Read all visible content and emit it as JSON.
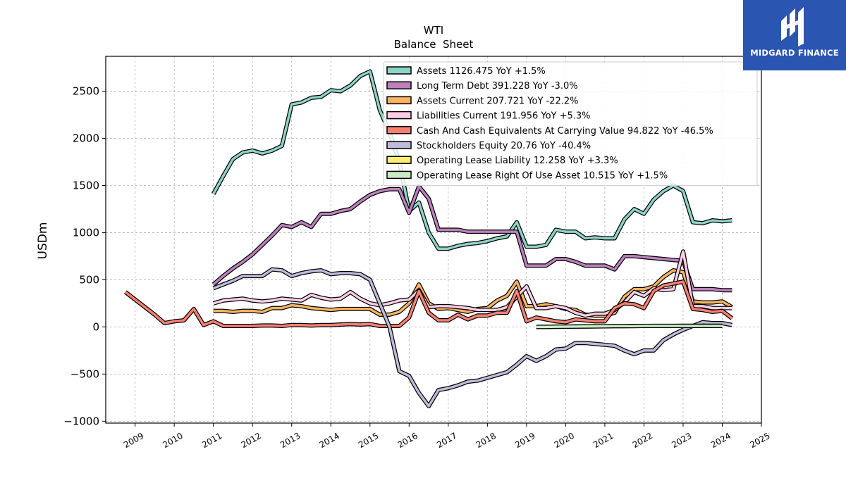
{
  "chart_data": {
    "type": "line",
    "title": "WTI",
    "subtitle": "Balance  Sheet",
    "ylabel": "USDm",
    "xlabel": "",
    "xlim": [
      2008.25,
      2025.0
    ],
    "ylim": [
      -1020,
      2870
    ],
    "grid": true,
    "legend_position": "top-right",
    "x_ticks": [
      2009,
      2010,
      2011,
      2012,
      2013,
      2014,
      2015,
      2016,
      2017,
      2018,
      2019,
      2020,
      2021,
      2022,
      2023,
      2024,
      2025
    ],
    "x_tick_labels": [
      "2009",
      "2010",
      "2011",
      "2012",
      "2013",
      "2014",
      "2015",
      "2016",
      "2017",
      "2018",
      "2019",
      "2020",
      "2021",
      "2022",
      "2023",
      "2024",
      "2025"
    ],
    "y_ticks": [
      -1000,
      -500,
      0,
      500,
      1000,
      1500,
      2000,
      2500
    ],
    "y_tick_labels": [
      "−1000",
      "−500",
      "0",
      "500",
      "1000",
      "1500",
      "2000",
      "2500"
    ],
    "series": [
      {
        "name": "Assets  1126.475 YoY +1.5%",
        "color": "#8dd3c7",
        "x": [
          2011.0,
          2011.25,
          2011.5,
          2011.75,
          2012.0,
          2012.25,
          2012.5,
          2012.75,
          2013.0,
          2013.25,
          2013.5,
          2013.75,
          2014.0,
          2014.25,
          2014.5,
          2014.75,
          2015.0,
          2015.25,
          2015.5,
          2015.75,
          2016.0,
          2016.25,
          2016.5,
          2016.75,
          2017.0,
          2017.25,
          2017.5,
          2017.75,
          2018.0,
          2018.25,
          2018.5,
          2018.75,
          2019.0,
          2019.25,
          2019.5,
          2019.75,
          2020.0,
          2020.25,
          2020.5,
          2020.75,
          2021.0,
          2021.25,
          2021.5,
          2021.75,
          2022.0,
          2022.25,
          2022.5,
          2022.75,
          2023.0,
          2023.25,
          2023.5,
          2023.75,
          2024.0,
          2024.25
        ],
        "values": [
          1410,
          1600,
          1780,
          1850,
          1870,
          1840,
          1870,
          1920,
          2360,
          2380,
          2430,
          2440,
          2510,
          2500,
          2560,
          2660,
          2710,
          2300,
          2060,
          1750,
          1230,
          1320,
          1000,
          830,
          830,
          860,
          880,
          890,
          910,
          940,
          960,
          1110,
          850,
          850,
          870,
          1030,
          1010,
          1010,
          940,
          950,
          940,
          940,
          1140,
          1250,
          1200,
          1350,
          1440,
          1500,
          1440,
          1110,
          1100,
          1130,
          1120,
          1130
        ]
      },
      {
        "name": "Long Term Debt  391.228 YoY -3.0%",
        "color": "#bc80bd",
        "x": [
          2011.0,
          2011.25,
          2011.5,
          2011.75,
          2012.0,
          2012.25,
          2012.5,
          2012.75,
          2013.0,
          2013.25,
          2013.5,
          2013.75,
          2014.0,
          2014.25,
          2014.5,
          2014.75,
          2015.0,
          2015.25,
          2015.5,
          2015.75,
          2016.0,
          2016.25,
          2016.5,
          2016.75,
          2017.0,
          2017.25,
          2017.5,
          2017.75,
          2018.0,
          2018.25,
          2018.5,
          2018.75,
          2019.0,
          2019.25,
          2019.5,
          2019.75,
          2020.0,
          2020.25,
          2020.5,
          2020.75,
          2021.0,
          2021.25,
          2021.5,
          2021.75,
          2022.0,
          2022.25,
          2022.5,
          2022.75,
          2023.0,
          2023.25,
          2023.5,
          2023.75,
          2024.0,
          2024.25
        ],
        "values": [
          450,
          540,
          620,
          690,
          770,
          870,
          970,
          1080,
          1060,
          1110,
          1060,
          1200,
          1200,
          1230,
          1250,
          1330,
          1400,
          1440,
          1460,
          1460,
          1210,
          1490,
          1360,
          1030,
          1030,
          1030,
          1010,
          1010,
          1010,
          1010,
          1010,
          1010,
          650,
          650,
          650,
          720,
          720,
          690,
          650,
          650,
          650,
          610,
          750,
          750,
          740,
          730,
          720,
          710,
          700,
          400,
          400,
          400,
          390,
          390
        ]
      },
      {
        "name": "Assets Current  207.721 YoY -22.2%",
        "color": "#fdb462",
        "x": [
          2011.0,
          2011.25,
          2011.5,
          2011.75,
          2012.0,
          2012.25,
          2012.5,
          2012.75,
          2013.0,
          2013.25,
          2013.5,
          2013.75,
          2014.0,
          2014.25,
          2014.5,
          2014.75,
          2015.0,
          2015.25,
          2015.5,
          2015.75,
          2016.0,
          2016.25,
          2016.5,
          2016.75,
          2017.0,
          2017.25,
          2017.5,
          2017.75,
          2018.0,
          2018.25,
          2018.5,
          2018.75,
          2019.0,
          2019.25,
          2019.5,
          2019.75,
          2020.0,
          2020.25,
          2020.5,
          2020.75,
          2021.0,
          2021.25,
          2021.5,
          2021.75,
          2022.0,
          2022.25,
          2022.5,
          2022.75,
          2023.0,
          2023.25,
          2023.5,
          2023.75,
          2024.0,
          2024.25
        ],
        "values": [
          170,
          170,
          160,
          170,
          170,
          160,
          200,
          200,
          230,
          220,
          200,
          190,
          180,
          190,
          190,
          190,
          190,
          130,
          130,
          160,
          250,
          450,
          250,
          190,
          200,
          180,
          160,
          190,
          200,
          280,
          330,
          480,
          220,
          220,
          240,
          220,
          190,
          180,
          130,
          120,
          120,
          150,
          320,
          400,
          400,
          430,
          530,
          600,
          580,
          270,
          260,
          260,
          270,
          210
        ]
      },
      {
        "name": "Liabilities Current  191.956 YoY +5.3%",
        "color": "#fccde5",
        "x": [
          2011.0,
          2011.25,
          2011.5,
          2011.75,
          2012.0,
          2012.25,
          2012.5,
          2012.75,
          2013.0,
          2013.25,
          2013.5,
          2013.75,
          2014.0,
          2014.25,
          2014.5,
          2014.75,
          2015.0,
          2015.25,
          2015.5,
          2015.75,
          2016.0,
          2016.25,
          2016.5,
          2016.75,
          2017.0,
          2017.25,
          2017.5,
          2017.75,
          2018.0,
          2018.25,
          2018.5,
          2018.75,
          2019.0,
          2019.25,
          2019.5,
          2019.75,
          2020.0,
          2020.25,
          2020.5,
          2020.75,
          2021.0,
          2021.25,
          2021.5,
          2021.75,
          2022.0,
          2022.25,
          2022.5,
          2022.75,
          2023.0,
          2023.25,
          2023.5,
          2023.75,
          2024.0,
          2024.25
        ],
        "values": [
          250,
          280,
          290,
          300,
          280,
          270,
          280,
          300,
          290,
          280,
          340,
          310,
          290,
          300,
          370,
          300,
          250,
          230,
          250,
          280,
          290,
          390,
          210,
          220,
          220,
          210,
          200,
          180,
          180,
          180,
          210,
          320,
          430,
          200,
          200,
          220,
          200,
          150,
          120,
          140,
          140,
          180,
          260,
          370,
          330,
          410,
          390,
          400,
          800,
          220,
          220,
          200,
          200,
          200
        ]
      },
      {
        "name": "Cash And Cash Equivalents At Carrying Value  94.822 YoY -46.5%",
        "color": "#fb8072",
        "x": [
          2008.75,
          2009.0,
          2009.25,
          2009.5,
          2009.75,
          2010.0,
          2010.25,
          2010.5,
          2010.75,
          2011.0,
          2011.25,
          2011.5,
          2011.75,
          2012.0,
          2012.25,
          2012.5,
          2012.75,
          2013.0,
          2013.25,
          2013.5,
          2013.75,
          2014.0,
          2014.25,
          2014.5,
          2014.75,
          2015.0,
          2015.25,
          2015.5,
          2015.75,
          2016.0,
          2016.25,
          2016.5,
          2016.75,
          2017.0,
          2017.25,
          2017.5,
          2017.75,
          2018.0,
          2018.25,
          2018.5,
          2018.75,
          2019.0,
          2019.25,
          2019.5,
          2019.75,
          2020.0,
          2020.25,
          2020.5,
          2020.75,
          2021.0,
          2021.25,
          2021.5,
          2021.75,
          2022.0,
          2022.25,
          2022.5,
          2022.75,
          2023.0,
          2023.25,
          2023.5,
          2023.75,
          2024.0,
          2024.25
        ],
        "values": [
          370,
          290,
          210,
          130,
          40,
          60,
          70,
          190,
          20,
          60,
          10,
          10,
          10,
          10,
          15,
          15,
          10,
          20,
          20,
          15,
          20,
          20,
          25,
          30,
          25,
          30,
          10,
          10,
          10,
          100,
          380,
          150,
          70,
          70,
          130,
          80,
          120,
          120,
          150,
          150,
          380,
          60,
          100,
          80,
          60,
          50,
          80,
          70,
          60,
          60,
          200,
          250,
          240,
          200,
          380,
          440,
          460,
          480,
          190,
          180,
          160,
          170,
          90
        ]
      },
      {
        "name": "Stockholders Equity  20.76 YoY -40.4%",
        "color": "#bebada",
        "x": [
          2011.0,
          2011.25,
          2011.5,
          2011.75,
          2012.0,
          2012.25,
          2012.5,
          2012.75,
          2013.0,
          2013.25,
          2013.5,
          2013.75,
          2014.0,
          2014.25,
          2014.5,
          2014.75,
          2015.0,
          2015.25,
          2015.5,
          2015.75,
          2016.0,
          2016.25,
          2016.5,
          2016.75,
          2017.0,
          2017.25,
          2017.5,
          2017.75,
          2018.0,
          2018.25,
          2018.5,
          2018.75,
          2019.0,
          2019.25,
          2019.5,
          2019.75,
          2020.0,
          2020.25,
          2020.5,
          2020.75,
          2021.0,
          2021.25,
          2021.5,
          2021.75,
          2022.0,
          2022.25,
          2022.5,
          2022.75,
          2023.0,
          2023.25,
          2023.5,
          2023.75,
          2024.0,
          2024.25
        ],
        "values": [
          410,
          450,
          490,
          540,
          540,
          540,
          610,
          600,
          540,
          570,
          590,
          600,
          560,
          570,
          570,
          560,
          500,
          250,
          0,
          -470,
          -520,
          -700,
          -840,
          -670,
          -650,
          -620,
          -580,
          -570,
          -540,
          -510,
          -480,
          -400,
          -310,
          -360,
          -310,
          -240,
          -230,
          -170,
          -170,
          -180,
          -190,
          -200,
          -250,
          -290,
          -250,
          -250,
          -140,
          -80,
          -30,
          10,
          50,
          40,
          40,
          20
        ]
      },
      {
        "name": "Operating Lease Liability  12.258 YoY +3.3%",
        "color": "#ffed6f",
        "x": [
          2019.25,
          2019.5,
          2019.75,
          2020.0,
          2020.25,
          2020.5,
          2020.75,
          2021.0,
          2021.25,
          2021.5,
          2021.75,
          2022.0,
          2022.25,
          2022.5,
          2022.75,
          2023.0,
          2023.25,
          2023.5,
          2023.75,
          2024.0
        ],
        "values": [
          0,
          0,
          2,
          3,
          5,
          5,
          6,
          7,
          8,
          9,
          10,
          10,
          11,
          11,
          11,
          12,
          12,
          12,
          12,
          12
        ]
      },
      {
        "name": "Operating Lease Right Of Use Asset  10.515 YoY +1.5%",
        "color": "#ccebc5",
        "x": [
          2019.25,
          2019.5,
          2019.75,
          2020.0,
          2020.25,
          2020.5,
          2020.75,
          2021.0,
          2021.25,
          2021.5,
          2021.75,
          2022.0,
          2022.25,
          2022.5,
          2022.75,
          2023.0,
          2023.25,
          2023.5,
          2023.75,
          2024.0
        ],
        "values": [
          0,
          0,
          2,
          3,
          4,
          5,
          6,
          7,
          8,
          9,
          9,
          10,
          10,
          10,
          10,
          10,
          10,
          10,
          10,
          10
        ]
      }
    ]
  },
  "logo": {
    "text": "MIDGARD FINANCE",
    "background": "#2a55b0",
    "icon": "midgard-logo-icon"
  }
}
